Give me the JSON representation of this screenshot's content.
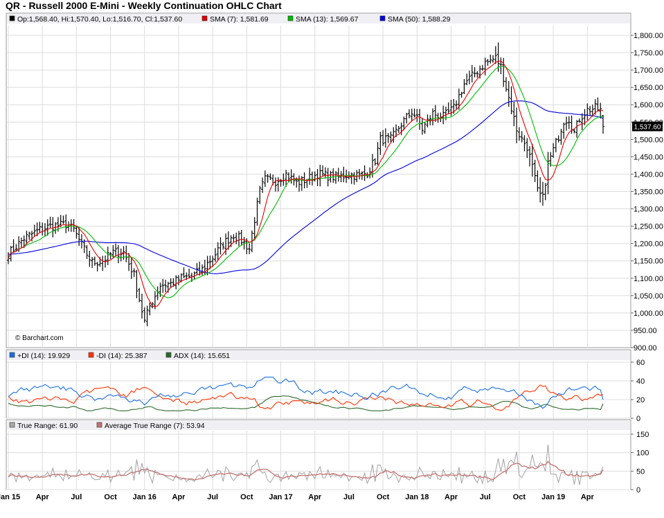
{
  "title": "QR - Russell 2000 E-Mini - Weekly Continuation OHLC Chart",
  "watermark": "© Barchart.com",
  "last_price_label": "1,537.60",
  "colors": {
    "sma7": "#e00000",
    "sma13": "#00bb00",
    "sma50": "#0000dd",
    "plus_di": "#1a6fe0",
    "minus_di": "#ff3300",
    "adx": "#2d6a2d",
    "true_range": "#a8a8a8",
    "atr": "#c87070",
    "frame": "#9a9a9a",
    "grid": "#dcdcdc",
    "legend_bg": "#f0f0f4"
  },
  "legends": {
    "price": [
      {
        "label": "Op:1,568.40, Hi:1,570.40, Lo:1,516.70, Cl:1,537.60",
        "color": "#000000"
      },
      {
        "label": "SMA (7): 1,581.69",
        "color": "#e00000"
      },
      {
        "label": "SMA (13): 1,569.67",
        "color": "#00bb00"
      },
      {
        "label": "SMA (50): 1,588.29",
        "color": "#0000dd"
      }
    ],
    "dmi": [
      {
        "label": "+DI (14): 19.929",
        "color": "#1a6fe0"
      },
      {
        "label": "-DI (14): 25.387",
        "color": "#ff3300"
      },
      {
        "label": "ADX (14): 15.651",
        "color": "#2d6a2d"
      }
    ],
    "atr": [
      {
        "label": "True Range: 61.90",
        "color": "#a8a8a8"
      },
      {
        "label": "Average True Range (7): 53.94",
        "color": "#c87070"
      }
    ]
  },
  "chart_data": [
    {
      "type": "ohlc",
      "panel": "price",
      "ylim": [
        900,
        1820
      ],
      "y_ticks": [
        "900.00",
        "950.00",
        "1,000.00",
        "1,050.00",
        "1,100.00",
        "1,150.00",
        "1,200.00",
        "1,250.00",
        "1,300.00",
        "1,350.00",
        "1,400.00",
        "1,450.00",
        "1,500.00",
        "1,550.00",
        "1,600.00",
        "1,650.00",
        "1,700.00",
        "1,750.00",
        "1,800.00"
      ],
      "x_ticks": [
        "Jan 15",
        "Apr",
        "Jul",
        "Oct",
        "Jan 16",
        "Apr",
        "Jul",
        "Oct",
        "Jan 17",
        "Apr",
        "Jul",
        "Oct",
        "Jan 18",
        "Apr",
        "Jul",
        "Oct",
        "Jan 19",
        "Apr"
      ],
      "x_tick_weeks": [
        0,
        13,
        26,
        39,
        52,
        65,
        78,
        91,
        104,
        117,
        130,
        143,
        156,
        169,
        182,
        195,
        208,
        221
      ],
      "anchors": [
        [
          0,
          1170
        ],
        [
          6,
          1215
        ],
        [
          12,
          1240
        ],
        [
          16,
          1250
        ],
        [
          22,
          1255
        ],
        [
          25,
          1240
        ],
        [
          28,
          1195
        ],
        [
          32,
          1145
        ],
        [
          36,
          1150
        ],
        [
          40,
          1175
        ],
        [
          44,
          1175
        ],
        [
          48,
          1110
        ],
        [
          50,
          1040
        ],
        [
          52,
          975
        ],
        [
          54,
          1020
        ],
        [
          58,
          1080
        ],
        [
          62,
          1085
        ],
        [
          66,
          1100
        ],
        [
          70,
          1105
        ],
        [
          74,
          1125
        ],
        [
          78,
          1160
        ],
        [
          82,
          1200
        ],
        [
          86,
          1225
        ],
        [
          89,
          1210
        ],
        [
          92,
          1185
        ],
        [
          94,
          1270
        ],
        [
          96,
          1350
        ],
        [
          98,
          1385
        ],
        [
          102,
          1380
        ],
        [
          106,
          1400
        ],
        [
          110,
          1375
        ],
        [
          114,
          1385
        ],
        [
          118,
          1400
        ],
        [
          122,
          1395
        ],
        [
          126,
          1390
        ],
        [
          130,
          1400
        ],
        [
          134,
          1395
        ],
        [
          137,
          1405
        ],
        [
          140,
          1440
        ],
        [
          142,
          1500
        ],
        [
          146,
          1500
        ],
        [
          150,
          1545
        ],
        [
          154,
          1580
        ],
        [
          156,
          1560
        ],
        [
          158,
          1530
        ],
        [
          162,
          1575
        ],
        [
          166,
          1565
        ],
        [
          170,
          1590
        ],
        [
          174,
          1660
        ],
        [
          178,
          1690
        ],
        [
          182,
          1720
        ],
        [
          186,
          1735
        ],
        [
          188,
          1710
        ],
        [
          190,
          1650
        ],
        [
          192,
          1590
        ],
        [
          194,
          1530
        ],
        [
          196,
          1500
        ],
        [
          198,
          1480
        ],
        [
          200,
          1420
        ],
        [
          202,
          1350
        ],
        [
          204,
          1330
        ],
        [
          206,
          1430
        ],
        [
          208,
          1470
        ],
        [
          210,
          1510
        ],
        [
          212,
          1555
        ],
        [
          214,
          1560
        ],
        [
          216,
          1520
        ],
        [
          218,
          1560
        ],
        [
          221,
          1585
        ],
        [
          224,
          1590
        ],
        [
          226,
          1585
        ],
        [
          227,
          1537.6
        ]
      ]
    },
    {
      "type": "line",
      "panel": "dmi",
      "ylim": [
        0,
        65
      ],
      "y_ticks": [
        "0",
        "20",
        "40",
        "60"
      ],
      "series": [
        {
          "name": "+DI (14)"
        },
        {
          "name": "-DI (14)"
        },
        {
          "name": "ADX (14)"
        }
      ]
    },
    {
      "type": "line",
      "panel": "atr",
      "ylim": [
        0,
        165
      ],
      "y_ticks": [
        "0",
        "50",
        "100",
        "150"
      ],
      "series": [
        {
          "name": "True Range"
        },
        {
          "name": "Average True Range (7)"
        }
      ]
    }
  ]
}
